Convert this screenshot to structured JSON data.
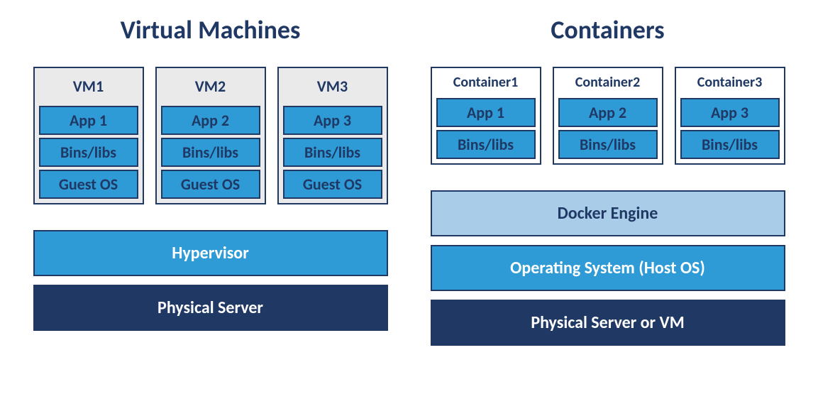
{
  "colors": {
    "title": "#1f3864",
    "navy_bg": "#1f3864",
    "navy_text": "#ffffff",
    "blue_bg": "#2e9bd6",
    "blue_text": "#ffffff",
    "lightblue_bg": "#a9cce9",
    "lightblue_text": "#1f3864",
    "unit_bg": "#eaeaea",
    "unit_border": "#1f3864",
    "block_bg": "#2e9bd6",
    "block_border": "#1f3864",
    "block_text": "#1f3864",
    "unit_label_text": "#1f3864"
  },
  "fonts": {
    "title_size": 36,
    "unit_title_size": 22,
    "block_size": 22,
    "bar_size": 24,
    "container_title_size": 20
  },
  "left": {
    "title": "Virtual Machines",
    "units": [
      {
        "name": "VM1",
        "blocks": [
          "App 1",
          "Bins/libs",
          "Guest OS"
        ]
      },
      {
        "name": "VM2",
        "blocks": [
          "App 2",
          "Bins/libs",
          "Guest OS"
        ]
      },
      {
        "name": "VM3",
        "blocks": [
          "App 3",
          "Bins/libs",
          "Guest OS"
        ]
      }
    ],
    "bars": [
      {
        "label": "Hypervisor",
        "bg": "#2e9bd6",
        "fg": "#ffffff",
        "border": "#1f3864"
      },
      {
        "label": "Physical Server",
        "bg": "#1f3864",
        "fg": "#ffffff",
        "border": "#1f3864"
      }
    ]
  },
  "right": {
    "title": "Containers",
    "units": [
      {
        "name": "Container1",
        "blocks": [
          "App 1",
          "Bins/libs"
        ]
      },
      {
        "name": "Container2",
        "blocks": [
          "App 2",
          "Bins/libs"
        ]
      },
      {
        "name": "Container3",
        "blocks": [
          "App 3",
          "Bins/libs"
        ]
      }
    ],
    "bars": [
      {
        "label": "Docker Engine",
        "bg": "#a9cce9",
        "fg": "#1f3864",
        "border": "#1f3864"
      },
      {
        "label": "Operating System (Host OS)",
        "bg": "#2e9bd6",
        "fg": "#ffffff",
        "border": "#1f3864"
      },
      {
        "label": "Physical Server or VM",
        "bg": "#1f3864",
        "fg": "#ffffff",
        "border": "#1f3864"
      }
    ]
  }
}
